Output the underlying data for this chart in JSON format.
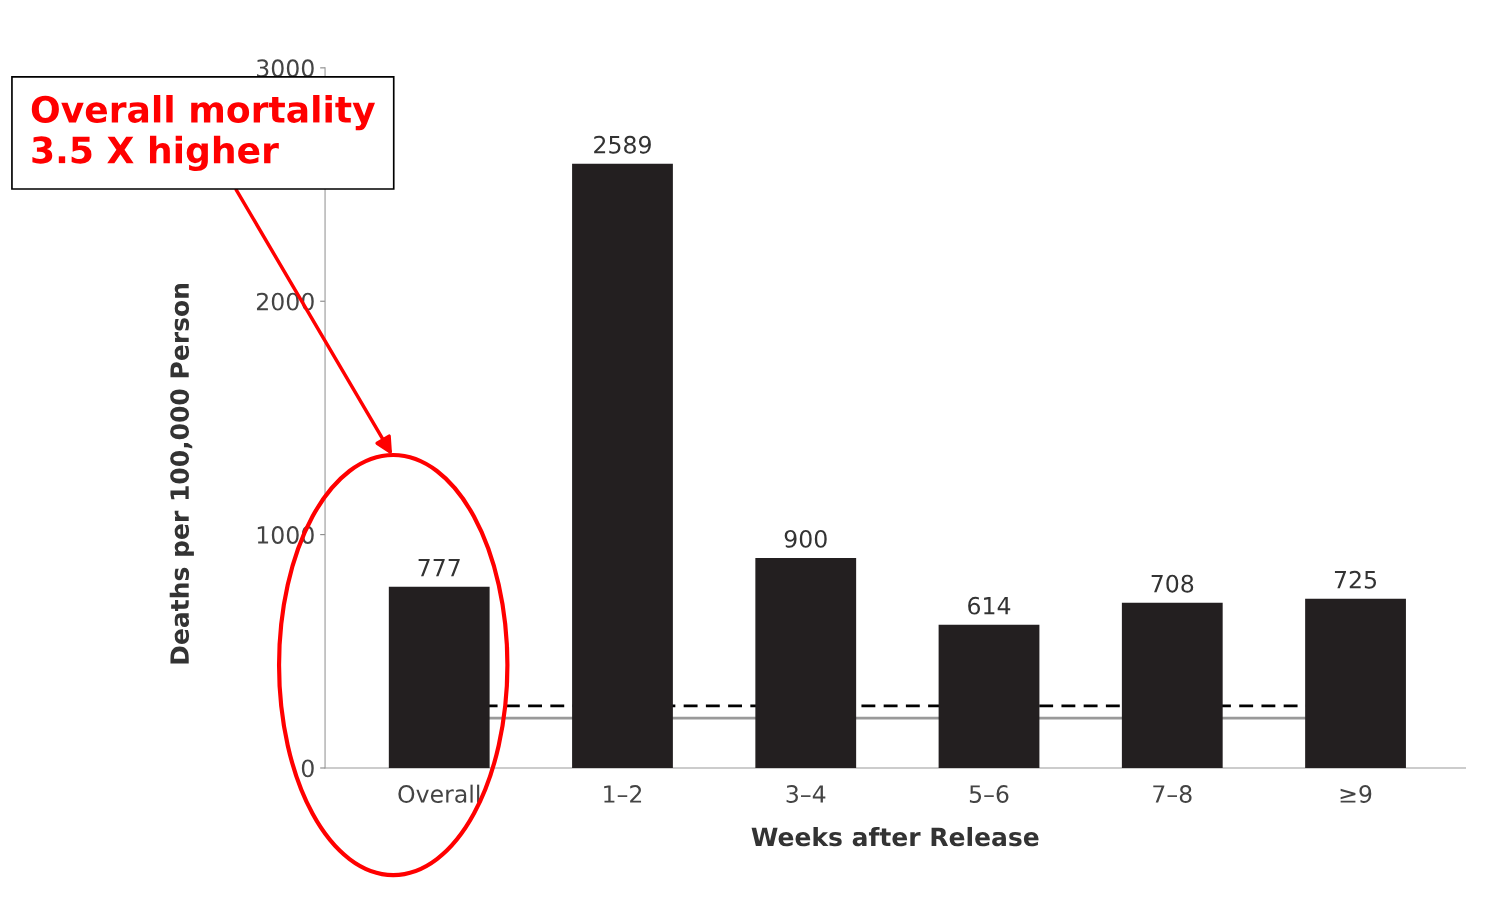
{
  "chart_data": {
    "type": "bar",
    "xlabel": "Weeks after Release",
    "ylabel": "Deaths per 100,000 Person",
    "categories": [
      "Overall",
      "1–2",
      "3–4",
      "5–6",
      "7–8",
      "≥9"
    ],
    "values": [
      777,
      2589,
      900,
      614,
      708,
      725
    ],
    "color": "#231f20",
    "data_labels": true,
    "ylim": [
      0,
      3000
    ],
    "yticks": [
      0,
      1000,
      2000,
      3000
    ],
    "grid": false,
    "ref_lines": [
      {
        "axis": "y",
        "value": 266,
        "label": null,
        "color": "#000000",
        "line_style": "dashed"
      },
      {
        "axis": "y",
        "value": 214,
        "label": null,
        "color": "#999999",
        "line_style": "solid"
      }
    ],
    "annotations": [
      "Overall mortality\n3.5 X higher"
    ]
  }
}
